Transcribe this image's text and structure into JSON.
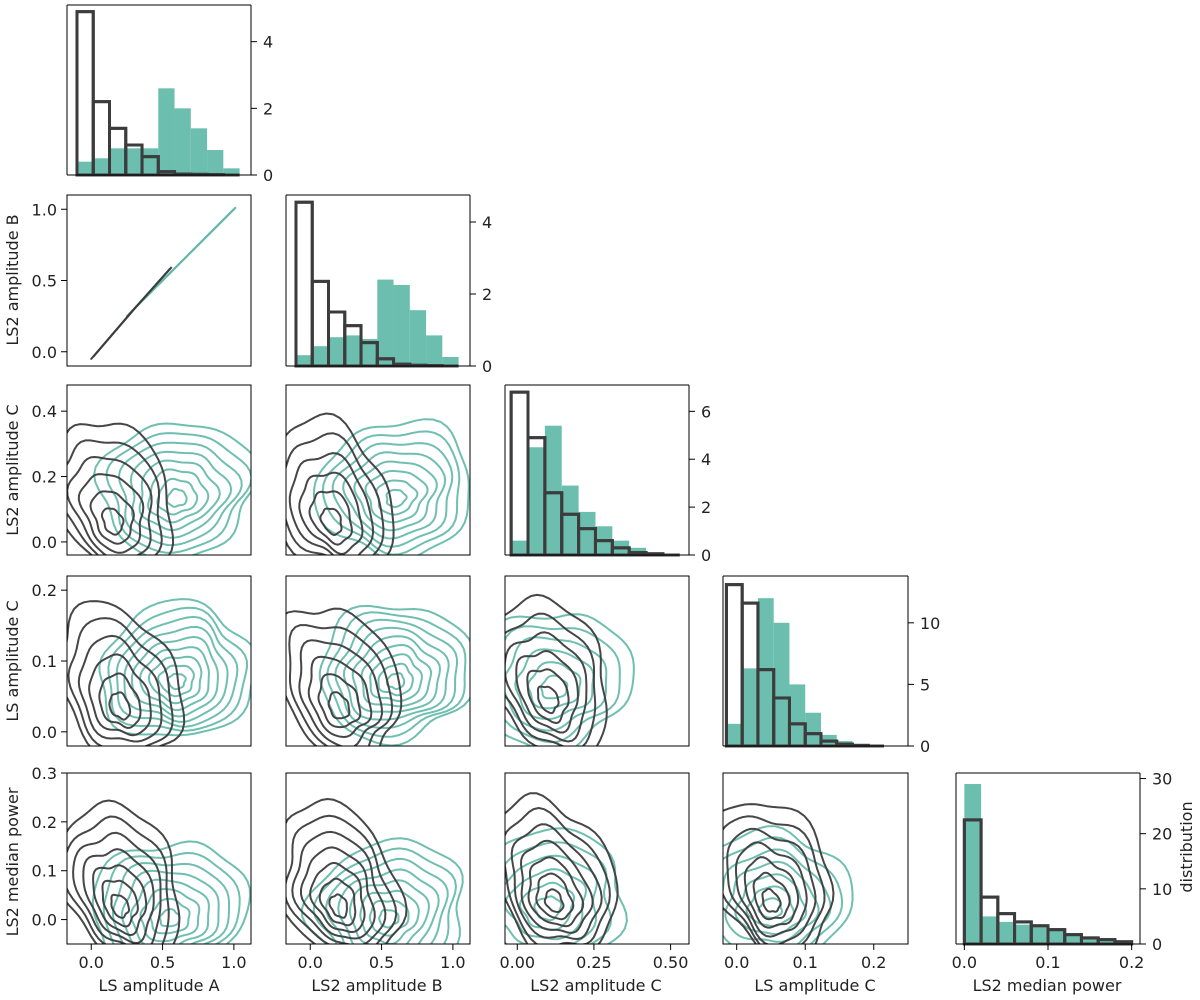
{
  "colors": {
    "teal": "#5fb8a8",
    "gray": "#3c3c3c"
  },
  "chart_data": {
    "type": "corner-plot",
    "variables": [
      "LS amplitude A",
      "LS2 amplitude B",
      "LS2 amplitude C",
      "LS amplitude C",
      "LS2 median power"
    ],
    "diag_axis_label": "distribution",
    "ranges": [
      [
        -0.17,
        1.12
      ],
      [
        -0.17,
        1.12
      ],
      [
        -0.04,
        0.56
      ],
      [
        -0.02,
        0.25
      ],
      [
        -0.01,
        0.21
      ]
    ],
    "ticks": [
      [
        0.0,
        0.5,
        1.0
      ],
      [
        0.0,
        0.5,
        1.0
      ],
      [
        0.0,
        0.25,
        0.5
      ],
      [
        0.0,
        0.1,
        0.2
      ],
      [
        0.0,
        0.1,
        0.2
      ]
    ],
    "tick_labels": [
      [
        "0.0",
        "0.5",
        "1.0"
      ],
      [
        "0.0",
        "0.5",
        "1.0"
      ],
      [
        "0.00",
        "0.25",
        "0.50"
      ],
      [
        "0.0",
        "0.1",
        "0.2"
      ],
      [
        "0.0",
        "0.1",
        "0.2"
      ]
    ],
    "y_ranges": {
      "1": [
        -0.1,
        1.1
      ],
      "2": [
        -0.04,
        0.48
      ],
      "3": [
        -0.02,
        0.22
      ],
      "4": [
        -0.05,
        0.3
      ]
    },
    "y_ticks": {
      "1": [
        0.0,
        0.5,
        1.0
      ],
      "2": [
        0.0,
        0.2,
        0.4
      ],
      "3": [
        0.0,
        0.1,
        0.2
      ],
      "4": [
        0.0,
        0.1,
        0.2,
        0.3
      ]
    },
    "y_tick_labels": {
      "1": [
        "0.0",
        "0.5",
        "1.0"
      ],
      "2": [
        "0.0",
        "0.2",
        "0.4"
      ],
      "3": [
        "0.0",
        "0.1",
        "0.2"
      ],
      "4": [
        "0.0",
        "0.1",
        "0.2",
        "0.3"
      ]
    },
    "diagonals": [
      {
        "variable": "LS amplitude A",
        "ymax": 5.1,
        "ticks": [
          0,
          2,
          4
        ],
        "tick_labels": [
          "0",
          "2",
          "4"
        ],
        "teal": {
          "edges": [
            -0.1,
            0.014,
            0.128,
            0.242,
            0.356,
            0.47,
            0.584,
            0.698,
            0.812,
            0.926,
            1.04
          ],
          "values": [
            0.4,
            0.5,
            0.8,
            0.8,
            0.8,
            2.6,
            2.0,
            1.4,
            0.75,
            0.2
          ]
        },
        "gray": {
          "edges": [
            -0.1,
            0.014,
            0.128,
            0.242,
            0.356,
            0.47,
            0.584,
            0.698,
            0.812,
            0.926,
            1.04
          ],
          "values": [
            4.9,
            2.2,
            1.4,
            0.9,
            0.55,
            0.1,
            0.03,
            0.02,
            0.01,
            0.0
          ]
        }
      },
      {
        "variable": "LS2 amplitude B",
        "ymax": 4.75,
        "ticks": [
          0,
          2,
          4
        ],
        "tick_labels": [
          "0",
          "2",
          "4"
        ],
        "teal": {
          "edges": [
            -0.1,
            0.014,
            0.128,
            0.242,
            0.356,
            0.47,
            0.584,
            0.698,
            0.812,
            0.926,
            1.04
          ],
          "values": [
            0.3,
            0.55,
            0.8,
            0.85,
            0.75,
            2.4,
            2.25,
            1.55,
            0.85,
            0.25
          ]
        },
        "gray": {
          "edges": [
            -0.1,
            0.014,
            0.128,
            0.242,
            0.356,
            0.47,
            0.584,
            0.698,
            0.812,
            0.926,
            1.04
          ],
          "values": [
            4.55,
            2.35,
            1.5,
            1.12,
            0.65,
            0.2,
            0.05,
            0.02,
            0.01,
            0.0
          ]
        }
      },
      {
        "variable": "LS2 amplitude C",
        "ymax": 7.1,
        "ticks": [
          0,
          2,
          4,
          6
        ],
        "tick_labels": [
          "0",
          "2",
          "4",
          "6"
        ],
        "teal": {
          "edges": [
            -0.02,
            0.035,
            0.09,
            0.145,
            0.2,
            0.255,
            0.31,
            0.365,
            0.42,
            0.475,
            0.53
          ],
          "values": [
            0.6,
            4.5,
            5.4,
            2.9,
            1.8,
            1.2,
            0.6,
            0.3,
            0.1,
            0.02
          ]
        },
        "gray": {
          "edges": [
            -0.02,
            0.035,
            0.09,
            0.145,
            0.2,
            0.255,
            0.31,
            0.365,
            0.42,
            0.475,
            0.53
          ],
          "values": [
            6.8,
            4.9,
            2.6,
            1.7,
            1.1,
            0.6,
            0.3,
            0.1,
            0.05,
            0.0
          ]
        }
      },
      {
        "variable": "LS amplitude C",
        "ymax": 13.8,
        "ticks": [
          0,
          5,
          10
        ],
        "tick_labels": [
          "0",
          "5",
          "10"
        ],
        "teal": {
          "edges": [
            -0.015,
            0.008,
            0.031,
            0.054,
            0.077,
            0.1,
            0.123,
            0.146,
            0.169,
            0.192,
            0.215
          ],
          "values": [
            1.8,
            6.3,
            12.0,
            10.0,
            5.0,
            2.7,
            0.9,
            0.4,
            0.15,
            0.05
          ]
        },
        "gray": {
          "edges": [
            -0.015,
            0.008,
            0.031,
            0.054,
            0.077,
            0.1,
            0.123,
            0.146,
            0.169,
            0.192,
            0.215
          ],
          "values": [
            13.1,
            11.6,
            6.2,
            3.9,
            1.8,
            1.0,
            0.4,
            0.15,
            0.05,
            0.0
          ]
        }
      },
      {
        "variable": "LS2 median power",
        "ymax": 31,
        "ticks": [
          0,
          10,
          20,
          30
        ],
        "tick_labels": [
          "0",
          "10",
          "20",
          "30"
        ],
        "teal": {
          "edges": [
            0.0,
            0.02,
            0.04,
            0.06,
            0.08,
            0.1,
            0.12,
            0.14,
            0.16,
            0.18,
            0.2
          ],
          "values": [
            29.0,
            5.0,
            4.0,
            3.5,
            3.0,
            2.5,
            1.5,
            1.0,
            0.7,
            0.4
          ]
        },
        "gray": {
          "edges": [
            0.0,
            0.02,
            0.04,
            0.06,
            0.08,
            0.1,
            0.12,
            0.14,
            0.16,
            0.18,
            0.2
          ],
          "values": [
            22.5,
            8.5,
            5.5,
            4.0,
            3.3,
            2.6,
            1.7,
            1.1,
            0.8,
            0.4
          ]
        }
      }
    ],
    "kde_pairs": {
      "teal": [
        {
          "col": 0,
          "row": 1,
          "points": [
            [
              0.25,
              0.25
            ],
            [
              0.5,
              0.5
            ],
            [
              0.75,
              0.75
            ],
            [
              1.0,
              1.0
            ]
          ]
        },
        {
          "col": 0,
          "row": 2,
          "peak": [
            0.6,
            0.13
          ],
          "levels": 8
        },
        {
          "col": 1,
          "row": 2,
          "peak": [
            0.6,
            0.13
          ],
          "levels": 8
        },
        {
          "col": 0,
          "row": 3,
          "peak": [
            0.6,
            0.07
          ],
          "levels": 9
        },
        {
          "col": 1,
          "row": 3,
          "peak": [
            0.6,
            0.07
          ],
          "levels": 9
        },
        {
          "col": 2,
          "row": 3,
          "peak": [
            0.12,
            0.06
          ],
          "levels": 6
        },
        {
          "col": 0,
          "row": 4,
          "peak": [
            0.55,
            0.0
          ],
          "levels": 8
        },
        {
          "col": 1,
          "row": 4,
          "peak": [
            0.55,
            0.0
          ],
          "levels": 8
        },
        {
          "col": 2,
          "row": 4,
          "peak": [
            0.1,
            0.02
          ],
          "levels": 6
        },
        {
          "col": 3,
          "row": 4,
          "peak": [
            0.05,
            0.02
          ],
          "levels": 7
        }
      ],
      "gray": [
        {
          "col": 0,
          "row": 1,
          "points": [
            [
              0.0,
              -0.05
            ],
            [
              0.3,
              0.3
            ],
            [
              0.55,
              0.58
            ]
          ]
        },
        {
          "col": 0,
          "row": 2,
          "peak": [
            0.15,
            0.05
          ],
          "levels": 6
        },
        {
          "col": 1,
          "row": 2,
          "peak": [
            0.15,
            0.05
          ],
          "levels": 6
        },
        {
          "col": 0,
          "row": 3,
          "peak": [
            0.2,
            0.03
          ],
          "levels": 6
        },
        {
          "col": 1,
          "row": 3,
          "peak": [
            0.2,
            0.03
          ],
          "levels": 6
        },
        {
          "col": 2,
          "row": 3,
          "peak": [
            0.1,
            0.04
          ],
          "levels": 6
        },
        {
          "col": 0,
          "row": 4,
          "peak": [
            0.2,
            0.02
          ],
          "levels": 7
        },
        {
          "col": 1,
          "row": 4,
          "peak": [
            0.2,
            0.02
          ],
          "levels": 7
        },
        {
          "col": 2,
          "row": 4,
          "peak": [
            0.12,
            0.03
          ],
          "levels": 7
        },
        {
          "col": 3,
          "row": 4,
          "peak": [
            0.05,
            0.03
          ],
          "levels": 7
        }
      ]
    }
  }
}
